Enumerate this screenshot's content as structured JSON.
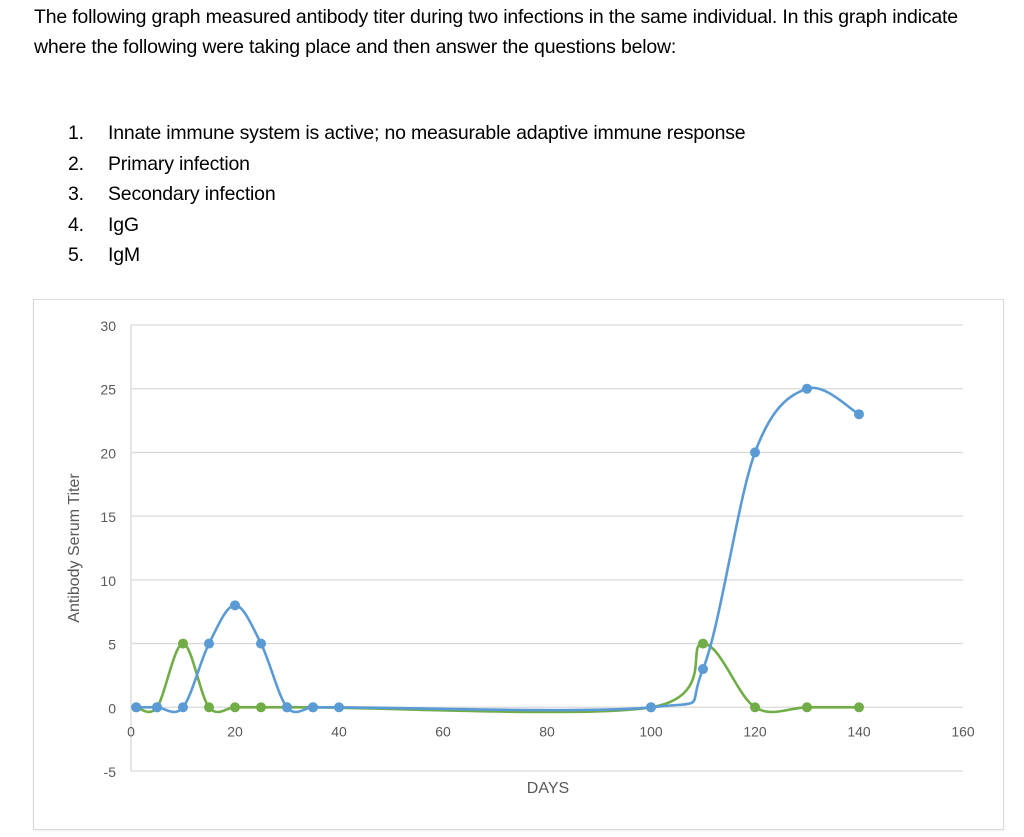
{
  "question": {
    "intro": "The following graph measured antibody titer during two infections in the same individual. In this graph indicate where the following were taking place and then answer the questions below:",
    "items": [
      {
        "num": "1.",
        "text": "Innate immune system is active; no measurable adaptive immune response"
      },
      {
        "num": "2.",
        "text": "Primary infection"
      },
      {
        "num": "3.",
        "text": "Secondary infection"
      },
      {
        "num": "4.",
        "text": "IgG"
      },
      {
        "num": "5.",
        "text": "IgM"
      }
    ]
  },
  "colors": {
    "blue_series": "#5B9BD5",
    "green_series": "#70AD47",
    "gridline": "#d9d9d9",
    "axis_text": "#595959"
  },
  "chart_data": {
    "type": "scatter",
    "subtype": "smooth line with markers",
    "title": "",
    "xlabel": "DAYS",
    "ylabel": "Antibody Serum Titer",
    "xlim": [
      0,
      160
    ],
    "ylim": [
      -5,
      30
    ],
    "x_ticks": [
      0,
      20,
      40,
      60,
      80,
      100,
      120,
      140,
      160
    ],
    "y_ticks": [
      -5,
      0,
      5,
      10,
      15,
      20,
      25,
      30
    ],
    "grid": {
      "horizontal": true,
      "vertical": false
    },
    "legend": null,
    "series": [
      {
        "name": "Blue series",
        "color": "#5B9BD5",
        "x": [
          1,
          5,
          10,
          15,
          20,
          25,
          30,
          35,
          40,
          100,
          110,
          120,
          130,
          140
        ],
        "y": [
          0,
          0,
          0,
          5,
          8,
          5,
          0,
          0,
          0,
          0,
          3,
          20,
          25,
          23
        ]
      },
      {
        "name": "Green series",
        "color": "#70AD47",
        "x": [
          1,
          5,
          10,
          15,
          20,
          25,
          30,
          35,
          100,
          110,
          120,
          130,
          140
        ],
        "y": [
          0,
          0,
          5,
          0,
          0,
          0,
          0,
          0,
          0,
          5,
          0,
          0,
          0
        ]
      }
    ]
  }
}
